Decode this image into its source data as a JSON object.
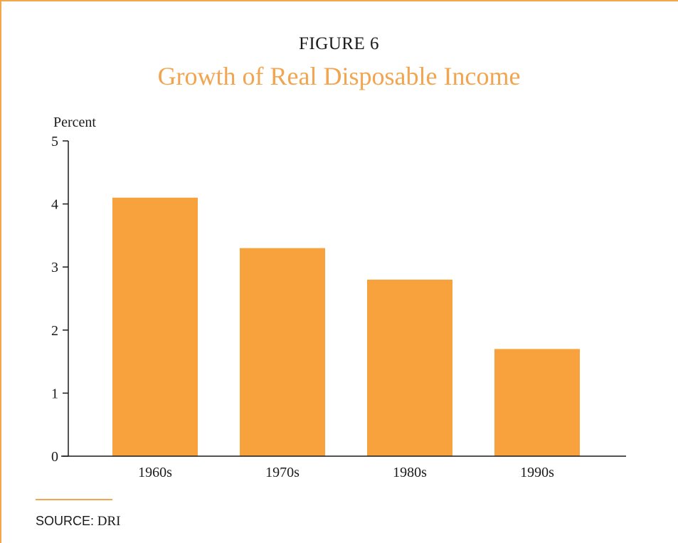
{
  "figure": {
    "label": "FIGURE 6",
    "title": "Growth of Real Disposable Income"
  },
  "source": {
    "label": "SOURCE:",
    "value": "DRI"
  },
  "colors": {
    "bar": "#f7a23c",
    "title": "#f3a44f",
    "axis": "#1a1a1a",
    "rule": "#f3a44f"
  },
  "chart_data": {
    "type": "bar",
    "categories": [
      "1960s",
      "1970s",
      "1980s",
      "1990s"
    ],
    "values": [
      4.1,
      3.3,
      2.8,
      1.7
    ],
    "ylabel": "Percent",
    "xlabel": "",
    "ylim": [
      0,
      5
    ],
    "yticks": [
      "0",
      "1",
      "2",
      "3",
      "4",
      "5"
    ],
    "grid": false,
    "legend": "none"
  }
}
